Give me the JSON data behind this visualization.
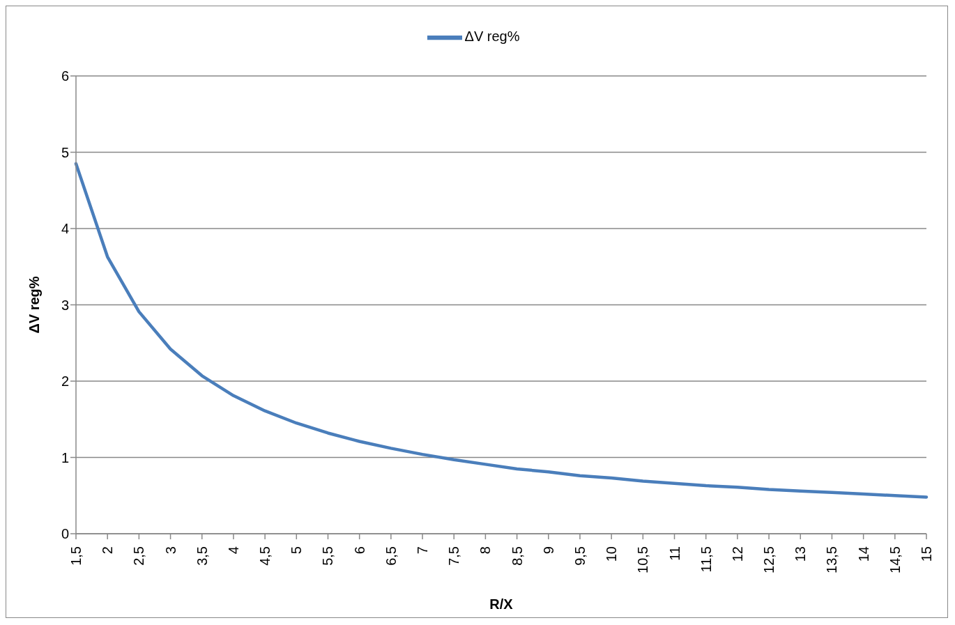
{
  "chart_data": {
    "type": "line",
    "xlabel": "R/X",
    "ylabel": "ΔV reg%",
    "categories": [
      "1,5",
      "2",
      "2,5",
      "3",
      "3,5",
      "4",
      "4,5",
      "5",
      "5,5",
      "6",
      "6,5",
      "7",
      "7,5",
      "8",
      "8,5",
      "9",
      "9,5",
      "10",
      "10,5",
      "11",
      "11,5",
      "12",
      "12,5",
      "13",
      "13,5",
      "14",
      "14,5",
      "15"
    ],
    "series": [
      {
        "name": "ΔV reg%",
        "color": "#4a7ebb",
        "values": [
          4.85,
          3.63,
          2.91,
          2.42,
          2.07,
          1.81,
          1.61,
          1.45,
          1.32,
          1.21,
          1.12,
          1.04,
          0.97,
          0.91,
          0.85,
          0.81,
          0.76,
          0.73,
          0.69,
          0.66,
          0.63,
          0.61,
          0.58,
          0.56,
          0.54,
          0.52,
          0.5,
          0.48
        ]
      }
    ],
    "ylim": [
      0,
      6
    ],
    "yticks": [
      0,
      1,
      2,
      3,
      4,
      5,
      6
    ],
    "grid": "y",
    "legend": "top"
  }
}
